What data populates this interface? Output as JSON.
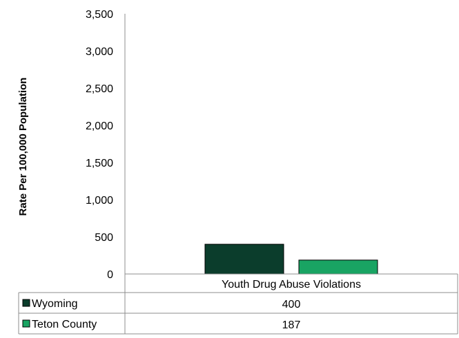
{
  "chart_data": {
    "type": "bar",
    "categories": [
      "Youth Drug Abuse Violations"
    ],
    "series": [
      {
        "name": "Wyoming",
        "values": [
          400
        ],
        "color": "#0b3d2c"
      },
      {
        "name": "Teton County",
        "values": [
          187
        ],
        "color": "#19a463"
      }
    ],
    "xlabel": "",
    "ylabel": "Rate Per 100,000 Population",
    "ylim": [
      0,
      3500
    ],
    "yticks": [
      0,
      500,
      1000,
      1500,
      2000,
      2500,
      3000,
      3500
    ],
    "ytick_labels": [
      "0",
      "500",
      "1,000",
      "1,500",
      "2,000",
      "2,500",
      "3,000",
      "3,500"
    ],
    "grid": false,
    "legend": "data-table",
    "data_table": {
      "rows": [
        {
          "label": "Wyoming",
          "values": [
            "400"
          ]
        },
        {
          "label": "Teton County",
          "values": [
            "187"
          ]
        }
      ]
    }
  }
}
